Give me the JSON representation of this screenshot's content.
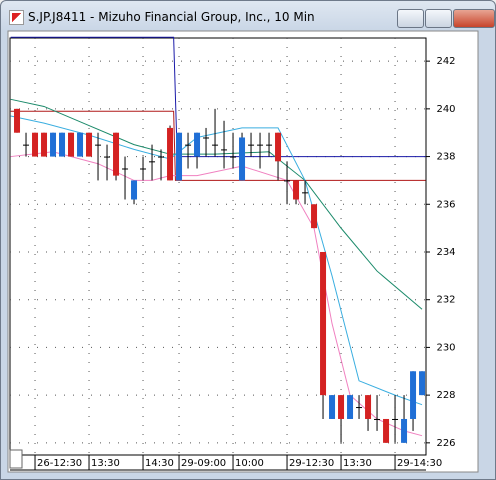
{
  "window_title": "S.JP.J8411 - Mizuho Financial Group, Inc., 10 Min",
  "chart_data": {
    "type": "candlestick",
    "open": [
      240,
      238.5,
      239,
      239,
      238,
      238,
      239,
      238,
      239,
      238.5,
      238,
      239,
      237.5,
      236.2,
      237.5,
      237.8,
      238,
      239.2,
      237,
      238.5,
      238,
      238.8,
      238.5,
      238.3,
      238,
      237,
      238.5,
      238.5,
      238.5,
      239,
      237,
      237,
      236.5,
      236,
      234,
      227,
      228,
      227,
      227.5,
      228,
      227,
      227,
      227,
      226,
      227,
      228
    ],
    "high": [
      240,
      239,
      239,
      239,
      239,
      239,
      239,
      239,
      239,
      239,
      238.5,
      239,
      238,
      237,
      238,
      238.5,
      238.3,
      239.3,
      239,
      239,
      239,
      239.2,
      240,
      239.5,
      239,
      239,
      239,
      239,
      239,
      239,
      237.8,
      237,
      237,
      236,
      234,
      228,
      228,
      228,
      228,
      228,
      228,
      227,
      228,
      228,
      229,
      229
    ],
    "low": [
      239,
      238,
      238,
      238,
      238,
      238,
      238,
      238,
      238,
      237,
      237,
      237,
      236.2,
      236,
      237,
      237,
      237,
      237,
      237,
      237.5,
      237.5,
      238,
      238,
      237.5,
      237.5,
      237,
      238,
      237.5,
      238,
      237,
      236,
      236,
      236,
      235,
      227,
      227,
      226,
      227,
      227,
      226.5,
      226.5,
      226,
      226,
      226,
      226.5,
      228
    ],
    "close": [
      239,
      238.5,
      238,
      238,
      239,
      239,
      238,
      239,
      238,
      238.5,
      238,
      237.2,
      237.5,
      237,
      237.5,
      237.8,
      238,
      237,
      239,
      238.5,
      239,
      238.8,
      238.5,
      238.3,
      238,
      238.8,
      238.5,
      238.5,
      238.5,
      237.8,
      237,
      236.2,
      236.5,
      235,
      228,
      228,
      227,
      228,
      227.5,
      227,
      227,
      226,
      227,
      227,
      229,
      229
    ],
    "up_color": "#1f6fd6",
    "down_color": "#d42222",
    "flat_color": "#000000",
    "lines": [
      {
        "color": "#1a1aa8",
        "x": [
          -0.7,
          17.4,
          17.8,
          45.4
        ],
        "values": [
          243,
          243,
          238,
          238
        ]
      },
      {
        "color": "#b01818",
        "x": [
          -0.7,
          17.4,
          17.6,
          45.4
        ],
        "values": [
          239.9,
          239.9,
          237,
          237
        ]
      },
      {
        "color": "#1b8a6a",
        "x": [
          -0.7,
          3,
          8,
          13,
          17,
          22,
          28,
          32,
          36,
          40,
          45
        ],
        "values": [
          240.4,
          240.1,
          239.3,
          238.5,
          238.1,
          238.1,
          238.2,
          237,
          235,
          233.2,
          231.6
        ]
      },
      {
        "color": "#3aaee0",
        "x": [
          -0.7,
          3,
          8,
          13,
          17,
          20,
          25,
          29,
          32,
          35,
          38,
          42,
          45
        ],
        "values": [
          239.7,
          239.4,
          238.9,
          238.3,
          237.9,
          238.8,
          239.2,
          239.2,
          237,
          233,
          228.6,
          228,
          227.6
        ]
      },
      {
        "color": "#f080c0",
        "x": [
          -0.7,
          4,
          9,
          13,
          15,
          17,
          20,
          25,
          30,
          33,
          35,
          37,
          40,
          43,
          45
        ],
        "values": [
          238,
          238.2,
          237.7,
          237,
          237,
          237.2,
          237.2,
          237.6,
          237,
          235,
          231,
          228,
          227,
          226.5,
          226.3
        ]
      }
    ],
    "xlim": [
      -0.78,
      45.44
    ],
    "xticks": [
      {
        "value": 2,
        "label": "26-12:30"
      },
      {
        "value": 8,
        "label": "13:30"
      },
      {
        "value": 14,
        "label": "14:30"
      },
      {
        "value": 18,
        "label": "29-09:00"
      },
      {
        "value": 24,
        "label": "10:00"
      },
      {
        "value": 30,
        "label": "29-12:30"
      },
      {
        "value": 36,
        "label": "13:30"
      },
      {
        "value": 42,
        "label": "29-14:30"
      }
    ],
    "ylim": [
      225.49,
      242.97
    ],
    "yticks": [
      242,
      240,
      238,
      236,
      234,
      232,
      230,
      228,
      226
    ],
    "grid": true
  }
}
